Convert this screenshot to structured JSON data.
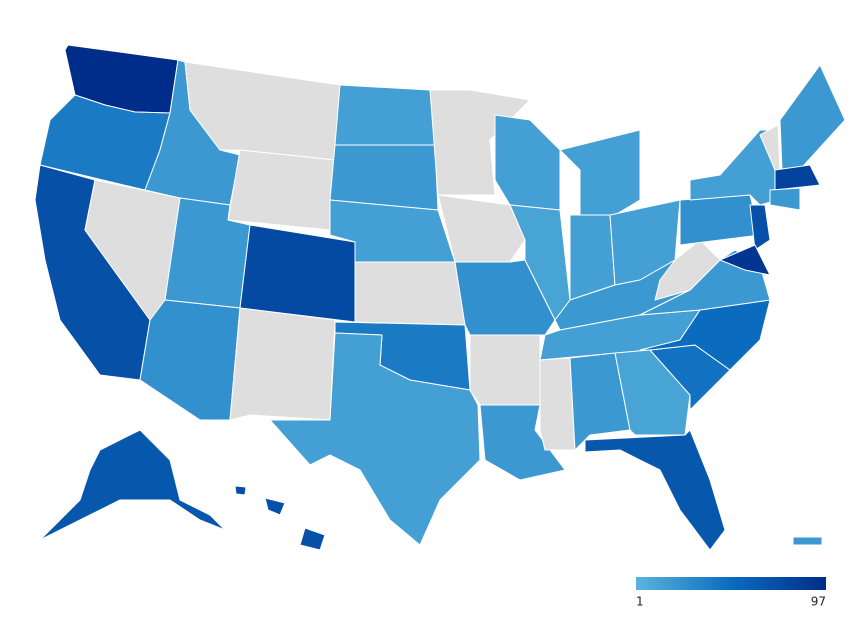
{
  "map": {
    "type": "choropleth",
    "values": [
      97,
      40,
      70,
      null,
      20,
      null,
      null,
      20,
      75,
      25,
      null,
      15,
      20,
      15,
      null,
      40,
      15,
      null,
      null,
      25,
      null,
      20,
      15,
      12,
      15,
      15,
      15,
      20,
      15,
      null,
      20,
      12,
      65,
      45,
      50,
      20,
      null,
      25,
      15,
      70,
      90,
      null,
      20,
      80,
      20,
      65,
      70,
      70,
      70,
      20
    ],
    "scale": {
      "min": 1,
      "max": 97,
      "colors": [
        "#5ab4dc",
        "#0b6cbf",
        "#002d8a"
      ],
      "missing_color": "#dedede"
    }
  }
}
